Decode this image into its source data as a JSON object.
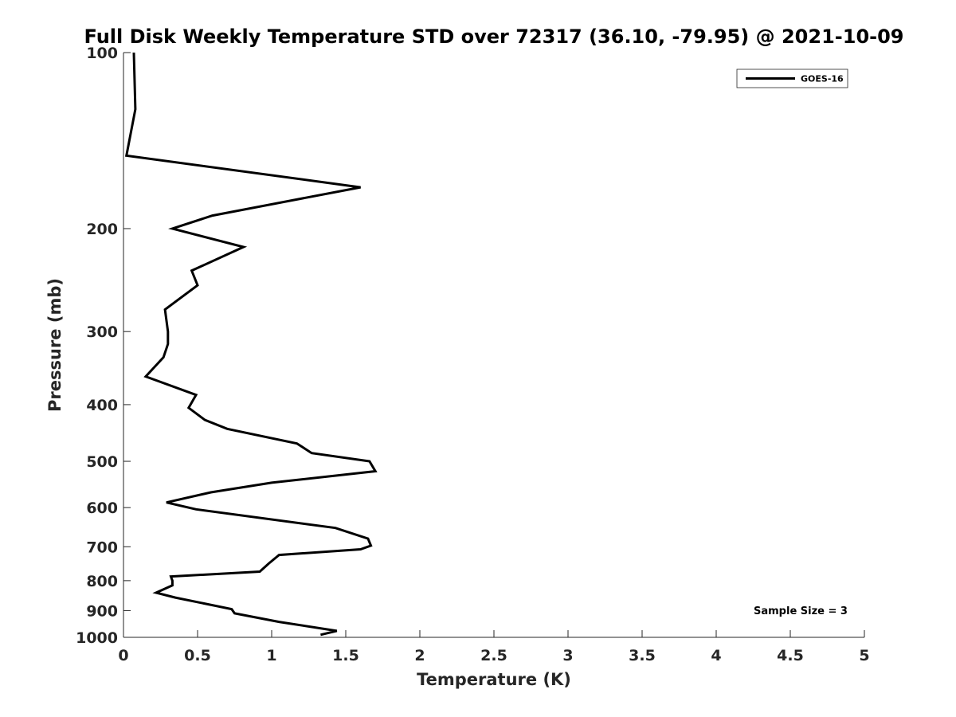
{
  "chart_data": {
    "type": "line",
    "title": "Full Disk Weekly Temperature STD over 72317 (36.10, -79.95) @ 2021-10-09",
    "xlabel": "Temperature (K)",
    "ylabel": "Pressure (mb)",
    "xlim": [
      0,
      5
    ],
    "ylim": [
      100,
      1000
    ],
    "y_scale": "log",
    "y_reversed": true,
    "x_ticks": [
      0,
      0.5,
      1,
      1.5,
      2,
      2.5,
      3,
      3.5,
      4,
      4.5,
      5
    ],
    "x_tick_labels": [
      "0",
      "0.5",
      "1",
      "1.5",
      "2",
      "2.5",
      "3",
      "3.5",
      "4",
      "4.5",
      "5"
    ],
    "y_ticks": [
      100,
      200,
      300,
      400,
      500,
      600,
      700,
      800,
      900,
      1000
    ],
    "y_tick_labels": [
      "100",
      "200",
      "300",
      "400",
      "500",
      "600",
      "700",
      "800",
      "900",
      "1000"
    ],
    "grid": false,
    "legend_position": "top-right",
    "series": [
      {
        "name": "GOES-16",
        "color": "#000000",
        "points": [
          [
            0.07,
            100
          ],
          [
            0.08,
            125
          ],
          [
            0.02,
            150
          ],
          [
            1.6,
            170
          ],
          [
            0.6,
            190
          ],
          [
            0.33,
            200
          ],
          [
            0.81,
            215
          ],
          [
            0.46,
            236
          ],
          [
            0.5,
            250
          ],
          [
            0.28,
            275
          ],
          [
            0.3,
            300
          ],
          [
            0.3,
            315
          ],
          [
            0.27,
            332
          ],
          [
            0.15,
            358
          ],
          [
            0.49,
            385
          ],
          [
            0.44,
            405
          ],
          [
            0.55,
            425
          ],
          [
            0.7,
            440
          ],
          [
            1.17,
            466
          ],
          [
            1.27,
            484
          ],
          [
            1.66,
            500
          ],
          [
            1.7,
            520
          ],
          [
            1.0,
            544
          ],
          [
            0.59,
            565
          ],
          [
            0.29,
            588
          ],
          [
            0.49,
            604
          ],
          [
            1.43,
            650
          ],
          [
            1.65,
            678
          ],
          [
            1.67,
            697
          ],
          [
            1.6,
            707
          ],
          [
            1.05,
            723
          ],
          [
            0.98,
            748
          ],
          [
            0.92,
            772
          ],
          [
            0.32,
            787
          ],
          [
            0.33,
            800
          ],
          [
            0.33,
            815
          ],
          [
            0.22,
            839
          ],
          [
            0.35,
            855
          ],
          [
            0.73,
            895
          ],
          [
            0.75,
            910
          ],
          [
            1.05,
            941
          ],
          [
            1.44,
            975
          ],
          [
            1.33,
            990
          ]
        ]
      }
    ],
    "annotation": "Sample Size = 3"
  }
}
